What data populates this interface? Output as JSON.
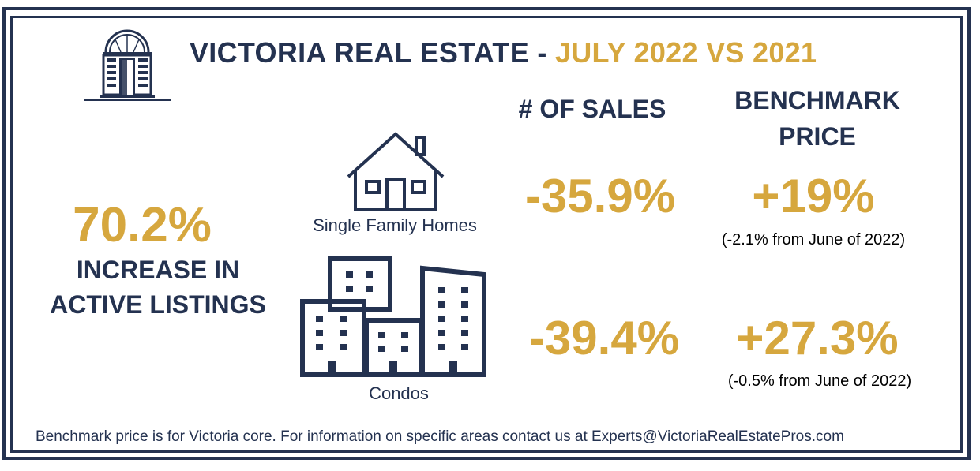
{
  "title": {
    "main": "VICTORIA REAL ESTATE - ",
    "accent": "JULY 2022 VS 2021"
  },
  "columns": {
    "sales_header": "# OF SALES",
    "benchmark_header_line1": "BENCHMARK",
    "benchmark_header_line2": "PRICE"
  },
  "listings": {
    "value": "70.2%",
    "label_line1": "INCREASE IN",
    "label_line2": "ACTIVE LISTINGS"
  },
  "rows": [
    {
      "category": "Single Family Homes",
      "icon": "house-icon",
      "sales_change": "-35.9%",
      "benchmark_change": "+19%",
      "benchmark_note": "(-2.1% from June of 2022)"
    },
    {
      "category": "Condos",
      "icon": "buildings-icon",
      "sales_change": "-39.4%",
      "benchmark_change": "+27.3%",
      "benchmark_note": "(-0.5% from June of 2022)"
    }
  ],
  "footer": "Benchmark price is for Victoria core. For information on specific areas contact us at Experts@VictoriaRealEstatePros.com",
  "colors": {
    "navy": "#243250",
    "gold": "#d6a73e"
  }
}
